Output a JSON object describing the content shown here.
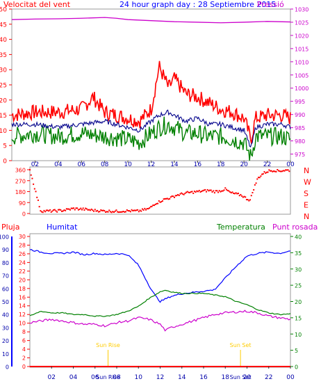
{
  "header": {
    "left_label": "Velocitat del vent",
    "title": "24 hour graph day : 28 Septiembre 2015",
    "right_label": "Pressió"
  },
  "colors": {
    "red": "#ff0000",
    "blue": "#0000ff",
    "darkblue": "#00008b",
    "green": "#008000",
    "magenta": "#cc00cc",
    "sun": "#ffcc00"
  },
  "chart_data": [
    {
      "type": "line",
      "title": "24 hour graph day : 28 Septiembre 2015",
      "x_unit": "hour",
      "xticks": [
        "02",
        "04",
        "06",
        "08",
        "10",
        "12",
        "14",
        "16",
        "18",
        "20",
        "22",
        "00"
      ],
      "left_axis": {
        "label": "Velocitat del vent",
        "ticks": [
          0,
          5,
          10,
          15,
          20,
          25,
          30,
          35,
          40,
          45,
          50
        ],
        "ylim": [
          0,
          50
        ]
      },
      "right_axis": {
        "label": "Pressió",
        "ticks": [
          975,
          980,
          985,
          990,
          995,
          1000,
          1005,
          1010,
          1015,
          1020,
          1025,
          1030
        ],
        "ylim": [
          972.5,
          1030
        ]
      },
      "series": [
        {
          "name": "Velocitat del vent",
          "axis": "left",
          "color": "#ff0000",
          "x": [
            0,
            2,
            4,
            6,
            7,
            8,
            9,
            10,
            11,
            12,
            12.7,
            13.5,
            14,
            15,
            16,
            17,
            18,
            19,
            20,
            20.6,
            21,
            22,
            23.3,
            24
          ],
          "values": [
            15,
            16,
            16,
            17,
            21,
            16,
            15,
            14,
            13,
            17,
            31,
            24,
            27,
            22,
            21,
            19,
            17,
            16,
            14,
            7,
            14,
            15,
            15,
            14
          ]
        },
        {
          "name": "Pressió",
          "axis": "right",
          "color": "#cc00cc",
          "x": [
            0,
            2,
            4,
            6,
            8,
            9,
            10,
            12,
            14,
            16,
            18,
            20,
            22,
            24
          ],
          "values": [
            1026,
            1026.2,
            1026.3,
            1026.5,
            1026.8,
            1026.5,
            1026,
            1025.6,
            1025.2,
            1025,
            1024.8,
            1025,
            1025.3,
            1025.1
          ]
        },
        {
          "name": "",
          "axis": "left",
          "color": "#00008b",
          "x": [
            0,
            2,
            4,
            6,
            8,
            10,
            11,
            12,
            12.7,
            13.5,
            14,
            15,
            16,
            17,
            18,
            19,
            20,
            20.6,
            21,
            22,
            23.3,
            24
          ],
          "values": [
            12,
            12,
            11,
            12,
            13,
            11,
            10,
            13,
            15,
            16,
            15,
            13,
            14,
            12,
            12,
            11,
            10,
            4,
            11,
            12,
            12,
            11
          ]
        },
        {
          "name": "",
          "axis": "left",
          "color": "#008000",
          "x": [
            0,
            2,
            4,
            6,
            8,
            10,
            11,
            12,
            12.7,
            13.5,
            14,
            15,
            16,
            17,
            18,
            19,
            20,
            20.6,
            21,
            22,
            23.3,
            24
          ],
          "values": [
            8,
            9,
            8,
            9,
            8,
            7,
            6,
            9,
            11,
            12,
            11,
            9,
            9,
            8,
            8,
            7,
            6,
            1,
            8,
            8,
            8,
            7
          ]
        }
      ]
    },
    {
      "type": "scatter",
      "x_unit": "hour",
      "y_axis": {
        "ticks": [
          0,
          90,
          180,
          270,
          360
        ],
        "ylim": [
          0,
          360
        ]
      },
      "right_labels": [
        "N",
        "W",
        "S",
        "E",
        "N"
      ],
      "series": [
        {
          "name": "",
          "color": "#ff0000",
          "x": [
            0,
            1,
            2,
            3,
            4,
            5,
            6,
            7,
            8,
            9,
            10,
            10.5,
            11,
            11.5,
            12,
            12.5,
            13,
            13.5,
            14,
            14.5,
            15,
            15.5,
            16,
            16.5,
            17,
            17.5,
            18,
            18.5,
            19,
            19.5,
            20,
            20.3,
            20.6,
            21,
            21.5,
            22,
            22.5,
            23,
            23.5,
            24
          ],
          "values": [
            360,
            20,
            20,
            25,
            40,
            35,
            25,
            20,
            18,
            22,
            20,
            30,
            40,
            80,
            100,
            120,
            130,
            150,
            160,
            170,
            175,
            180,
            185,
            190,
            180,
            185,
            200,
            170,
            160,
            150,
            120,
            110,
            200,
            290,
            330,
            350,
            355,
            350,
            355,
            355
          ]
        }
      ]
    },
    {
      "type": "line",
      "x_unit": "hour",
      "labels": [
        "Pluja",
        "Humitat",
        "Temperatura",
        "Punt rosada"
      ],
      "axes": {
        "humitat": {
          "ticks": [
            0,
            10,
            20,
            30,
            40,
            50,
            60,
            70,
            80,
            90,
            100
          ],
          "ylim": [
            0,
            100
          ]
        },
        "pluja": {
          "ticks": [
            0,
            2,
            4,
            6,
            8,
            10,
            12,
            14,
            16,
            18,
            20,
            22,
            24,
            26,
            28,
            30
          ],
          "ylim": [
            0,
            30
          ]
        },
        "temperatura": {
          "ticks": [
            0,
            5,
            10,
            15,
            20,
            25,
            30,
            35,
            40
          ],
          "ylim": [
            0,
            40
          ]
        }
      },
      "annotations": [
        {
          "text": "Sun Rise",
          "x": 7.2
        },
        {
          "text": "Sun Set",
          "x": 19.4
        }
      ],
      "series": [
        {
          "name": "Humitat",
          "axis": "humitat",
          "color": "#0000ff",
          "x": [
            0,
            1,
            2,
            3,
            4,
            5,
            6,
            7,
            8,
            9,
            10,
            11,
            11.5,
            12,
            12.5,
            13,
            14,
            15,
            16,
            17,
            18,
            19,
            20,
            21,
            22,
            23,
            24
          ],
          "values": [
            90,
            88,
            87,
            87,
            88,
            86,
            87,
            86,
            87,
            86,
            78,
            62,
            55,
            50,
            52,
            54,
            56,
            57,
            58,
            59,
            68,
            77,
            85,
            87,
            88,
            87,
            89
          ]
        },
        {
          "name": "Temperatura",
          "axis": "temperatura",
          "color": "#008000",
          "x": [
            0,
            1,
            2,
            3,
            4,
            5,
            6,
            7,
            8,
            9,
            10,
            11,
            12,
            12.5,
            13,
            14,
            15,
            16,
            17,
            18,
            19,
            20,
            21,
            22,
            23,
            24
          ],
          "values": [
            15.5,
            17,
            16.5,
            16.5,
            16,
            16,
            15.5,
            15.5,
            16,
            17,
            18.5,
            21,
            23,
            23.5,
            23,
            22.5,
            22.5,
            22.5,
            22,
            21.5,
            20,
            19,
            17.5,
            16.5,
            16,
            16.2
          ]
        },
        {
          "name": "Punt rosada",
          "axis": "temperatura",
          "color": "#cc00cc",
          "x": [
            0,
            1,
            2,
            3,
            4,
            5,
            6,
            7,
            8,
            9,
            10,
            11,
            12,
            12.5,
            13,
            14,
            15,
            16,
            17,
            18,
            19,
            20,
            21,
            22,
            23,
            24
          ],
          "values": [
            13.5,
            14,
            14.5,
            14,
            13.5,
            13,
            13,
            12.5,
            13.5,
            14,
            15,
            14.5,
            13,
            11,
            12,
            13,
            14,
            15,
            16,
            16.5,
            16.8,
            17,
            16.5,
            15.5,
            15,
            14.5
          ]
        },
        {
          "name": "Pluja",
          "axis": "pluja",
          "color": "#ff0000",
          "x": [
            0,
            24
          ],
          "values": [
            0,
            0
          ]
        }
      ]
    }
  ]
}
